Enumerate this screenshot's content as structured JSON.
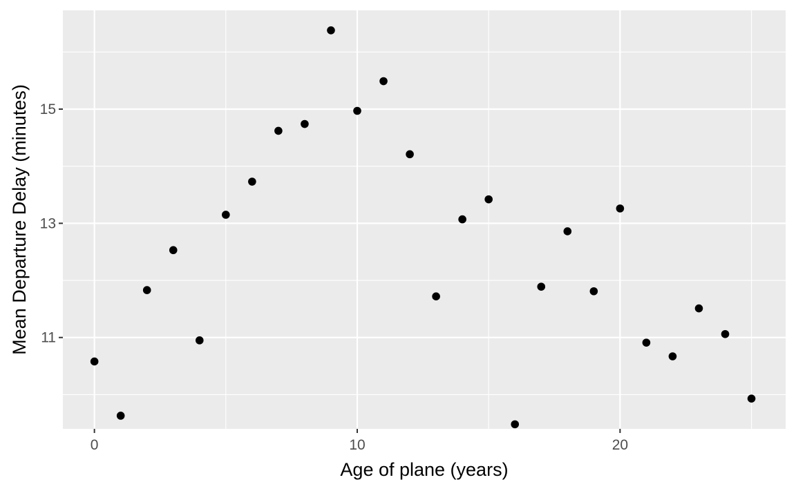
{
  "chart_data": {
    "type": "scatter",
    "title": "",
    "xlabel": "Age of plane (years)",
    "ylabel": "Mean Departure Delay (minutes)",
    "xlim": [
      -1.2,
      26.3
    ],
    "ylim": [
      9.4,
      16.73
    ],
    "x_ticks": [
      0,
      10,
      20
    ],
    "x_tick_labels": [
      "0",
      "10",
      "20"
    ],
    "y_ticks": [
      11,
      13,
      15
    ],
    "y_tick_labels": [
      "11",
      "13",
      "15"
    ],
    "grid": true,
    "legend": "none",
    "colors": {
      "panel_background": "#ebebeb",
      "grid_major": "#ffffff",
      "point": "#000000",
      "tick_label": "#4d4d4d",
      "axis_title": "#000000"
    },
    "x": [
      0,
      1,
      2,
      3,
      4,
      5,
      6,
      7,
      8,
      9,
      10,
      11,
      12,
      13,
      14,
      15,
      16,
      17,
      18,
      19,
      20,
      21,
      22,
      23,
      24,
      25
    ],
    "y": [
      10.58,
      9.63,
      11.83,
      12.53,
      10.95,
      13.15,
      13.73,
      14.62,
      14.74,
      16.38,
      14.97,
      15.49,
      14.21,
      11.72,
      13.07,
      13.42,
      9.48,
      11.89,
      12.86,
      11.81,
      13.26,
      10.91,
      10.67,
      11.51,
      11.06,
      9.93
    ]
  }
}
